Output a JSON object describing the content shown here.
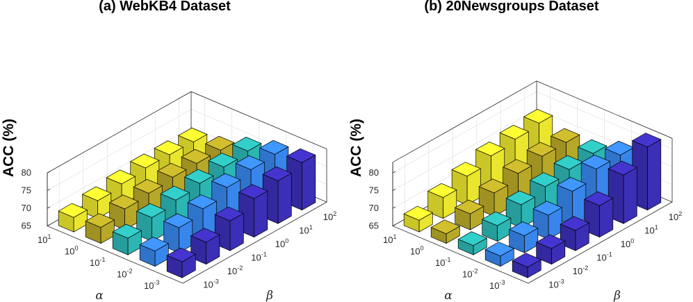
{
  "chart_data": [
    {
      "type": "bar3d",
      "title": "(a) WebKB4 Dataset",
      "zlabel": "ACC (%)",
      "xlabel": "α",
      "ylabel": "β",
      "zlim": [
        65,
        80
      ],
      "zticks": [
        "65",
        "70",
        "75",
        "80"
      ],
      "alpha_ticks": [
        {
          "base": "10",
          "exp": "-3"
        },
        {
          "base": "10",
          "exp": "-2"
        },
        {
          "base": "10",
          "exp": "-1"
        },
        {
          "base": "10",
          "exp": "0"
        },
        {
          "base": "10",
          "exp": "1"
        }
      ],
      "beta_ticks": [
        {
          "base": "10",
          "exp": "-3"
        },
        {
          "base": "10",
          "exp": "-2"
        },
        {
          "base": "10",
          "exp": "-1"
        },
        {
          "base": "10",
          "exp": "0"
        },
        {
          "base": "10",
          "exp": "1"
        },
        {
          "base": "10",
          "exp": "2"
        }
      ],
      "values": [
        [
          69.5,
          71.2,
          73.4,
          75.9,
          77.1,
          78.4
        ],
        [
          69.3,
          72.1,
          73.6,
          75.8,
          77.0,
          77.5
        ],
        [
          69.7,
          71.7,
          72.8,
          73.7,
          74.5,
          75.2
        ],
        [
          69.5,
          70.9,
          71.5,
          72.2,
          72.3,
          72.2
        ],
        [
          69.1,
          70.0,
          70.9,
          71.6,
          71.5,
          71.3
        ]
      ],
      "grid": true
    },
    {
      "type": "bar3d",
      "title": "(b) 20Newsgroups Dataset",
      "zlabel": "ACC (%)",
      "xlabel": "α",
      "ylabel": "β",
      "zlim": [
        65,
        83
      ],
      "zticks": [
        "65",
        "70",
        "75",
        "80"
      ],
      "alpha_ticks": [
        {
          "base": "10",
          "exp": "-3"
        },
        {
          "base": "10",
          "exp": "-2"
        },
        {
          "base": "10",
          "exp": "-1"
        },
        {
          "base": "10",
          "exp": "0"
        },
        {
          "base": "10",
          "exp": "1"
        }
      ],
      "beta_ticks": [
        {
          "base": "10",
          "exp": "-3"
        },
        {
          "base": "10",
          "exp": "-2"
        },
        {
          "base": "10",
          "exp": "-1"
        },
        {
          "base": "10",
          "exp": "0"
        },
        {
          "base": "10",
          "exp": "1"
        },
        {
          "base": "10",
          "exp": "2"
        }
      ],
      "values": [
        [
          68.0,
          69.4,
          70.7,
          73.9,
          78.7,
          82.8
        ],
        [
          67.9,
          69.8,
          71.8,
          74.7,
          77.2,
          77.3
        ],
        [
          67.6,
          69.4,
          71.5,
          72.8,
          73.8,
          74.5
        ],
        [
          67.7,
          69.5,
          71.6,
          73.3,
          74.3,
          74.4
        ],
        [
          68.3,
          70.9,
          73.1,
          75.0,
          75.9,
          76.6
        ]
      ],
      "grid": true
    }
  ],
  "colors": {
    "alpha_rows": [
      "#3f31c1",
      "#3b8cf8",
      "#2ec0bc",
      "#c2b12a",
      "#f6f130"
    ],
    "edge": "#000000",
    "axis": "#262626",
    "grid": "#e4e4e4"
  }
}
